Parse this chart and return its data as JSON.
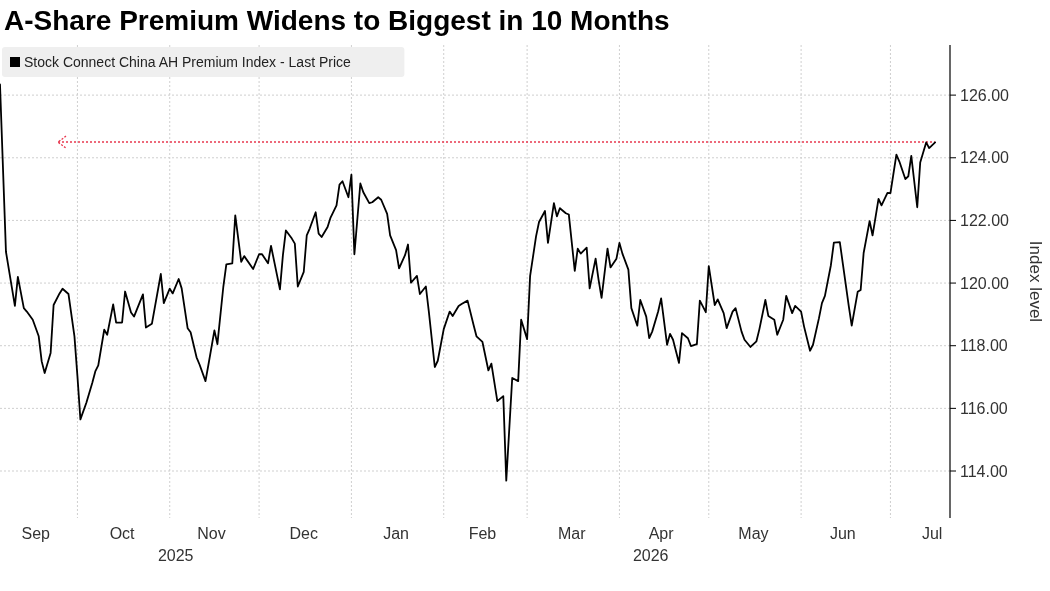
{
  "chart_data": {
    "type": "line",
    "title": "A-Share Premium Widens to Biggest in 10 Months",
    "ylabel": "Index level",
    "legend": "top left",
    "grid": true,
    "line_style": "solid",
    "marker": "none",
    "xlim": [
      "2025-09-05",
      "2026-07-21"
    ],
    "xticks": [
      {
        "value": "2025-09-17",
        "label": "Sep"
      },
      {
        "value": "2025-10-16",
        "label": "Oct"
      },
      {
        "value": "2025-11-15",
        "label": "Nov"
      },
      {
        "value": "2025-12-16",
        "label": "Dec"
      },
      {
        "value": "2026-01-16",
        "label": "Jan"
      },
      {
        "value": "2026-02-14",
        "label": "Feb"
      },
      {
        "value": "2026-03-16",
        "label": "Mar"
      },
      {
        "value": "2026-04-15",
        "label": "Apr"
      },
      {
        "value": "2026-05-16",
        "label": "May"
      },
      {
        "value": "2026-06-15",
        "label": "Jun"
      },
      {
        "value": "2026-07-15",
        "label": "Jul"
      }
    ],
    "ylim": [
      112.5,
      127.6
    ],
    "yticks": [
      {
        "value": 114,
        "label": "114.00"
      },
      {
        "value": 116,
        "label": "116.00"
      },
      {
        "value": 118,
        "label": "118.00"
      },
      {
        "value": 120,
        "label": "120.00"
      },
      {
        "value": 122,
        "label": "122.00"
      },
      {
        "value": 124,
        "label": "124.00"
      },
      {
        "value": 126,
        "label": "126.00"
      }
    ],
    "annotations": [
      "2025",
      "2026"
    ],
    "ref_lines": [
      {
        "axis": "y",
        "value": 124.5,
        "color": "#e8384f",
        "line_style": "dotted"
      }
    ],
    "series": [
      {
        "name": "Stock Connect China AH Premium Index - Last Price",
        "color": "#000000",
        "x": [
          "2025-09-05",
          "2025-09-07",
          "2025-09-10",
          "2025-09-11",
          "2025-09-13",
          "2025-09-14",
          "2025-09-16",
          "2025-09-18",
          "2025-09-19",
          "2025-09-20",
          "2025-09-22",
          "2025-09-23",
          "2025-09-25",
          "2025-09-26",
          "2025-09-28",
          "2025-09-30",
          "2025-10-01",
          "2025-10-02",
          "2025-10-04",
          "2025-10-06",
          "2025-10-07",
          "2025-10-08",
          "2025-10-10",
          "2025-10-11",
          "2025-10-13",
          "2025-10-14",
          "2025-10-16",
          "2025-10-17",
          "2025-10-19",
          "2025-10-20",
          "2025-10-23",
          "2025-10-24",
          "2025-10-26",
          "2025-10-29",
          "2025-10-30",
          "2025-11-01",
          "2025-11-02",
          "2025-11-04",
          "2025-11-05",
          "2025-11-07",
          "2025-11-08",
          "2025-11-10",
          "2025-11-11",
          "2025-11-13",
          "2025-11-14",
          "2025-11-16",
          "2025-11-17",
          "2025-11-19",
          "2025-11-20",
          "2025-11-22",
          "2025-11-23",
          "2025-11-25",
          "2025-11-26",
          "2025-11-29",
          "2025-12-01",
          "2025-12-02",
          "2025-12-04",
          "2025-12-05",
          "2025-12-08",
          "2025-12-09",
          "2025-12-10",
          "2025-12-12",
          "2025-12-13",
          "2025-12-14",
          "2025-12-16",
          "2025-12-17",
          "2025-12-18",
          "2025-12-20",
          "2025-12-21",
          "2025-12-22",
          "2025-12-24",
          "2025-12-25",
          "2025-12-27",
          "2025-12-28",
          "2025-12-29",
          "2025-12-31",
          "2026-01-01",
          "2026-01-02",
          "2026-01-04",
          "2026-01-05",
          "2026-01-07",
          "2026-01-08",
          "2026-01-10",
          "2026-01-11",
          "2026-01-13",
          "2026-01-14",
          "2026-01-16",
          "2026-01-17",
          "2026-01-19",
          "2026-01-20",
          "2026-01-21",
          "2026-01-23",
          "2026-01-24",
          "2026-01-26",
          "2026-01-27",
          "2026-01-29",
          "2026-01-30",
          "2026-02-01",
          "2026-02-03",
          "2026-02-04",
          "2026-02-06",
          "2026-02-07",
          "2026-02-09",
          "2026-02-11",
          "2026-02-12",
          "2026-02-14",
          "2026-02-16",
          "2026-02-17",
          "2026-02-19",
          "2026-02-21",
          "2026-02-22",
          "2026-02-24",
          "2026-02-26",
          "2026-02-27",
          "2026-03-01",
          "2026-03-02",
          "2026-03-04",
          "2026-03-05",
          "2026-03-07",
          "2026-03-08",
          "2026-03-10",
          "2026-03-11",
          "2026-03-12",
          "2026-03-14",
          "2026-03-15",
          "2026-03-17",
          "2026-03-18",
          "2026-03-19",
          "2026-03-21",
          "2026-03-22",
          "2026-03-24",
          "2026-03-25",
          "2026-03-26",
          "2026-03-28",
          "2026-03-29",
          "2026-03-31",
          "2026-04-01",
          "2026-04-02",
          "2026-04-04",
          "2026-04-05",
          "2026-04-07",
          "2026-04-08",
          "2026-04-10",
          "2026-04-11",
          "2026-04-12",
          "2026-04-14",
          "2026-04-15",
          "2026-04-17",
          "2026-04-18",
          "2026-04-19",
          "2026-04-21",
          "2026-04-22",
          "2026-04-24",
          "2026-04-25",
          "2026-04-27",
          "2026-04-28",
          "2026-04-30",
          "2026-05-01",
          "2026-05-03",
          "2026-05-04",
          "2026-05-06",
          "2026-05-07",
          "2026-05-09",
          "2026-05-10",
          "2026-05-12",
          "2026-05-13",
          "2026-05-15",
          "2026-05-17",
          "2026-05-18",
          "2026-05-20",
          "2026-05-21",
          "2026-05-23",
          "2026-05-24",
          "2026-05-26",
          "2026-05-27",
          "2026-05-29",
          "2026-05-30",
          "2026-06-01",
          "2026-06-02",
          "2026-06-04",
          "2026-06-05",
          "2026-06-07",
          "2026-06-08",
          "2026-06-09",
          "2026-06-11",
          "2026-06-12",
          "2026-06-14",
          "2026-06-15",
          "2026-06-17",
          "2026-06-18",
          "2026-06-20",
          "2026-06-21",
          "2026-06-22",
          "2026-06-24",
          "2026-06-25",
          "2026-06-27",
          "2026-06-28",
          "2026-06-30",
          "2026-07-01",
          "2026-07-03",
          "2026-07-04",
          "2026-07-06",
          "2026-07-07",
          "2026-07-08",
          "2026-07-10",
          "2026-07-11",
          "2026-07-13",
          "2026-07-14",
          "2026-07-16"
        ],
        "values": [
          126.34,
          121.0,
          119.27,
          120.2,
          119.2,
          119.09,
          118.83,
          118.3,
          117.5,
          117.13,
          117.77,
          119.3,
          119.67,
          119.82,
          119.65,
          118.3,
          117.03,
          115.65,
          116.18,
          116.82,
          117.18,
          117.37,
          118.51,
          118.35,
          119.32,
          118.74,
          118.74,
          119.73,
          119.06,
          118.93,
          119.64,
          118.58,
          118.7,
          120.29,
          119.36,
          119.82,
          119.67,
          120.13,
          119.83,
          118.56,
          118.43,
          117.63,
          117.4,
          116.87,
          117.4,
          118.49,
          118.05,
          119.89,
          120.6,
          120.63,
          122.16,
          120.68,
          120.86,
          120.45,
          120.92,
          120.92,
          120.63,
          121.19,
          119.8,
          120.89,
          121.68,
          121.42,
          121.26,
          119.89,
          120.36,
          121.52,
          121.74,
          122.26,
          121.58,
          121.47,
          121.79,
          122.09,
          122.48,
          123.14,
          123.25,
          122.74,
          123.46,
          120.92,
          123.18,
          122.9,
          122.55,
          122.58,
          122.74,
          122.66,
          122.21,
          121.52,
          121.05,
          120.47,
          120.89,
          121.23,
          120.01,
          120.23,
          119.65,
          119.89,
          119.09,
          117.32,
          117.52,
          118.53,
          119.09,
          118.95,
          119.27,
          119.33,
          119.44,
          118.67,
          118.3,
          118.12,
          117.21,
          117.43,
          116.23,
          116.39,
          113.69,
          116.97,
          116.87,
          118.83,
          118.21,
          120.22,
          121.49,
          121.95,
          122.3,
          121.28,
          122.55,
          122.13,
          122.39,
          122.23,
          122.19,
          120.39,
          121.1,
          120.94,
          121.13,
          119.83,
          120.78,
          120.1,
          119.53,
          121.1,
          120.5,
          120.78,
          121.28,
          120.94,
          120.43,
          119.2,
          118.64,
          119.46,
          118.93,
          118.24,
          118.45,
          119.09,
          119.51,
          118.03,
          118.38,
          118.19,
          117.45,
          118.4,
          118.24,
          117.99,
          118.05,
          119.44,
          119.07,
          120.54,
          119.3,
          119.48,
          119.04,
          118.56,
          119.09,
          119.2,
          118.45,
          118.19,
          117.96,
          118.14,
          118.53,
          119.46,
          118.95,
          118.83,
          118.35,
          118.83,
          119.59,
          119.04,
          119.27,
          119.09,
          118.61,
          117.84,
          118.03,
          118.88,
          119.36,
          119.59,
          120.57,
          121.29,
          121.31,
          120.63,
          119.27,
          118.64,
          119.72,
          119.78,
          120.96,
          121.98,
          121.52,
          122.69,
          122.48,
          122.88,
          122.87,
          124.1,
          123.88,
          123.32,
          123.41,
          124.06,
          122.42,
          123.85,
          124.49,
          124.31,
          124.49
        ]
      }
    ]
  }
}
